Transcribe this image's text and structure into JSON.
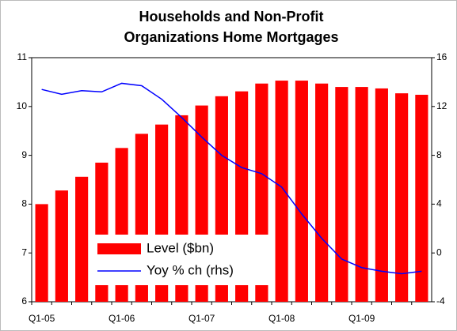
{
  "chart_data": {
    "type": "bar-line",
    "title": [
      "Households and Non-Profit",
      "Organizations Home Mortgages"
    ],
    "categories": [
      "Q1-05",
      null,
      null,
      null,
      "Q1-06",
      null,
      null,
      null,
      "Q1-07",
      null,
      null,
      null,
      "Q1-08",
      null,
      null,
      null,
      "Q1-09",
      null,
      null,
      null
    ],
    "series": [
      {
        "name": "Level ($bn)",
        "color": "#ff0000",
        "type": "bar",
        "values": [
          8.0,
          8.28,
          8.56,
          8.85,
          9.15,
          9.44,
          9.63,
          9.82,
          10.02,
          10.21,
          10.31,
          10.47,
          10.53,
          10.53,
          10.47,
          10.4,
          10.4,
          10.37,
          10.27,
          10.24
        ]
      },
      {
        "name": "Yoy % ch (rhs)",
        "color": "#0000ff",
        "type": "line",
        "axis": "y2",
        "values": [
          13.4,
          13.0,
          13.3,
          13.2,
          13.9,
          13.7,
          12.6,
          11.1,
          9.5,
          8.0,
          7.0,
          6.5,
          5.4,
          3.2,
          1.2,
          -0.5,
          -1.2,
          -1.5,
          -1.7,
          -1.5
        ]
      }
    ],
    "ylim": [
      6,
      11
    ],
    "yticks": [
      6,
      7,
      8,
      9,
      10,
      11
    ],
    "y2lim": [
      -4,
      16
    ],
    "y2ticks": [
      -4,
      0,
      4,
      8,
      12,
      16
    ],
    "legend": "lower left"
  }
}
